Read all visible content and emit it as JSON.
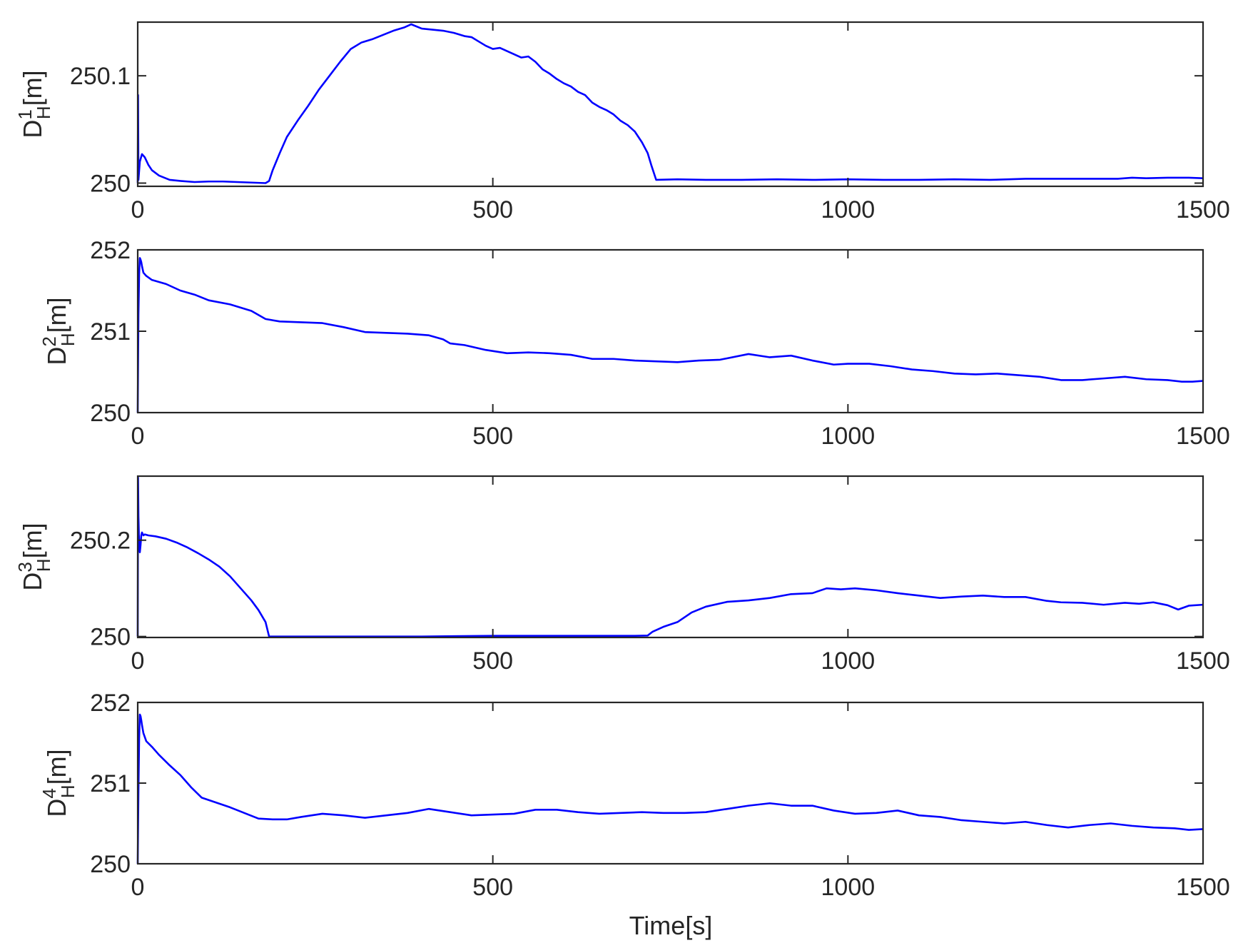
{
  "figure": {
    "xlabel": "Time[s]",
    "line_color": "#0000ff",
    "axes_color": "#262626"
  },
  "chart_data": [
    {
      "type": "line",
      "ylabel": {
        "base": "D",
        "sup": "1",
        "sub": "H",
        "unit": "[m]"
      },
      "xlim": [
        0,
        1500
      ],
      "ylim": [
        249.997,
        250.15
      ],
      "xticks": [
        0,
        500,
        1000,
        1500
      ],
      "yticks": [
        250,
        250.1
      ],
      "ytick_labels": [
        "250",
        "250.1"
      ],
      "grid": false,
      "series": [
        {
          "x": [
            0,
            0.5,
            1,
            3,
            6,
            10,
            15,
            20,
            30,
            45,
            60,
            80,
            100,
            120,
            140,
            160,
            180,
            185,
            190,
            200,
            210,
            225,
            240,
            255,
            270,
            285,
            300,
            315,
            330,
            345,
            360,
            375,
            385,
            400,
            415,
            430,
            445,
            460,
            470,
            480,
            490,
            500,
            510,
            520,
            530,
            540,
            550,
            560,
            570,
            580,
            590,
            600,
            610,
            620,
            630,
            640,
            650,
            660,
            670,
            680,
            690,
            700,
            710,
            718,
            723,
            730,
            760,
            800,
            850,
            900,
            950,
            1000,
            1050,
            1100,
            1150,
            1200,
            1250,
            1300,
            1350,
            1380,
            1400,
            1420,
            1450,
            1480,
            1500
          ],
          "y": [
            250.0,
            250.082,
            250.003,
            250.02,
            250.027,
            250.024,
            250.017,
            250.012,
            250.007,
            250.003,
            250.002,
            250.001,
            250.0015,
            250.0015,
            250.001,
            250.0005,
            250.0,
            250.002,
            250.012,
            250.028,
            250.043,
            250.058,
            250.072,
            250.087,
            250.1,
            250.113,
            250.125,
            250.131,
            250.134,
            250.138,
            250.142,
            250.145,
            250.148,
            250.144,
            250.143,
            250.142,
            250.14,
            250.137,
            250.136,
            250.132,
            250.128,
            250.125,
            250.126,
            250.123,
            250.12,
            250.117,
            250.118,
            250.113,
            250.106,
            250.102,
            250.097,
            250.093,
            250.09,
            250.085,
            250.082,
            250.075,
            250.071,
            250.068,
            250.064,
            250.058,
            250.054,
            250.048,
            250.038,
            250.028,
            250.017,
            250.003,
            250.0035,
            250.003,
            250.003,
            250.0035,
            250.003,
            250.0035,
            250.003,
            250.003,
            250.0035,
            250.003,
            250.004,
            250.004,
            250.004,
            250.004,
            250.005,
            250.0045,
            250.005,
            250.005,
            250.0045
          ]
        }
      ]
    },
    {
      "type": "line",
      "ylabel": {
        "base": "D",
        "sup": "2",
        "sub": "H",
        "unit": "[m]"
      },
      "xlim": [
        0,
        1500
      ],
      "ylim": [
        250,
        252
      ],
      "xticks": [
        0,
        500,
        1000,
        1500
      ],
      "yticks": [
        250,
        251,
        252
      ],
      "ytick_labels": [
        "250",
        "251",
        "252"
      ],
      "grid": false,
      "series": [
        {
          "x": [
            0,
            1,
            2,
            3,
            4,
            5,
            6,
            8,
            12,
            20,
            40,
            60,
            80,
            100,
            130,
            160,
            180,
            200,
            230,
            260,
            290,
            320,
            350,
            380,
            410,
            430,
            440,
            460,
            490,
            520,
            550,
            580,
            610,
            640,
            670,
            700,
            730,
            760,
            790,
            820,
            860,
            890,
            920,
            950,
            980,
            1000,
            1030,
            1060,
            1090,
            1120,
            1150,
            1180,
            1210,
            1240,
            1270,
            1300,
            1330,
            1360,
            1390,
            1420,
            1450,
            1470,
            1485,
            1500
          ],
          "y": [
            250.0,
            251.2,
            251.7,
            251.9,
            251.88,
            251.85,
            251.8,
            251.72,
            251.68,
            251.63,
            251.58,
            251.5,
            251.45,
            251.38,
            251.33,
            251.25,
            251.15,
            251.12,
            251.11,
            251.1,
            251.05,
            250.99,
            250.98,
            250.97,
            250.95,
            250.9,
            250.85,
            250.83,
            250.77,
            250.73,
            250.74,
            250.73,
            250.71,
            250.66,
            250.66,
            250.64,
            250.63,
            250.62,
            250.64,
            250.65,
            250.72,
            250.68,
            250.7,
            250.64,
            250.59,
            250.6,
            250.6,
            250.57,
            250.53,
            250.51,
            250.48,
            250.47,
            250.48,
            250.46,
            250.44,
            250.4,
            250.4,
            250.42,
            250.44,
            250.41,
            250.4,
            250.38,
            250.38,
            250.39
          ]
        }
      ]
    },
    {
      "type": "line",
      "ylabel": {
        "base": "D",
        "sup": "3",
        "sub": "H",
        "unit": "[m]"
      },
      "xlim": [
        0,
        1500
      ],
      "ylim": [
        249.998,
        250.333
      ],
      "xticks": [
        0,
        500,
        1000,
        1500
      ],
      "yticks": [
        250,
        250.2
      ],
      "ytick_labels": [
        "250",
        "250.2"
      ],
      "grid": false,
      "series": [
        {
          "x": [
            0,
            0.5,
            1,
            2,
            3,
            4,
            5,
            6,
            8,
            10,
            15,
            25,
            40,
            55,
            70,
            85,
            100,
            115,
            130,
            145,
            160,
            170,
            180,
            185,
            200,
            300,
            400,
            500,
            600,
            700,
            718,
            725,
            740,
            760,
            780,
            800,
            830,
            860,
            890,
            920,
            950,
            970,
            990,
            1010,
            1040,
            1070,
            1100,
            1130,
            1160,
            1190,
            1220,
            1250,
            1280,
            1300,
            1330,
            1360,
            1390,
            1410,
            1430,
            1450,
            1465,
            1480,
            1500
          ],
          "y": [
            250.0,
            250.33,
            250.25,
            250.19,
            250.175,
            250.19,
            250.21,
            250.216,
            250.21,
            250.212,
            250.21,
            250.208,
            250.203,
            250.195,
            250.185,
            250.173,
            250.16,
            250.145,
            250.125,
            250.1,
            250.075,
            250.055,
            250.03,
            250.0,
            250.0,
            250.0,
            250.0,
            250.0015,
            250.0015,
            250.0015,
            250.002,
            250.01,
            250.02,
            250.03,
            250.05,
            250.062,
            250.072,
            250.075,
            250.08,
            250.088,
            250.09,
            250.1,
            250.098,
            250.1,
            250.096,
            250.09,
            250.085,
            250.08,
            250.083,
            250.085,
            250.082,
            250.082,
            250.074,
            250.071,
            250.07,
            250.066,
            250.07,
            250.068,
            250.071,
            250.065,
            250.056,
            250.064,
            250.066
          ]
        }
      ]
    },
    {
      "type": "line",
      "ylabel": {
        "base": "D",
        "sup": "4",
        "sub": "H",
        "unit": "[m]"
      },
      "xlim": [
        0,
        1500
      ],
      "ylim": [
        250,
        252
      ],
      "xticks": [
        0,
        500,
        1000,
        1500
      ],
      "yticks": [
        250,
        251,
        252
      ],
      "ytick_labels": [
        "250",
        "251",
        "252"
      ],
      "grid": false,
      "series": [
        {
          "x": [
            0,
            1,
            2,
            3,
            4,
            5,
            6,
            8,
            12,
            20,
            30,
            45,
            60,
            75,
            90,
            110,
            130,
            150,
            170,
            190,
            210,
            230,
            260,
            290,
            320,
            350,
            380,
            410,
            440,
            470,
            500,
            530,
            560,
            590,
            620,
            650,
            680,
            710,
            740,
            770,
            800,
            830,
            860,
            890,
            920,
            950,
            980,
            1010,
            1040,
            1070,
            1100,
            1130,
            1160,
            1190,
            1220,
            1250,
            1280,
            1310,
            1340,
            1370,
            1400,
            1430,
            1460,
            1480,
            1500
          ],
          "y": [
            250.0,
            250.9,
            251.55,
            251.85,
            251.83,
            251.78,
            251.72,
            251.62,
            251.52,
            251.45,
            251.35,
            251.22,
            251.1,
            250.95,
            250.82,
            250.76,
            250.7,
            250.63,
            250.56,
            250.55,
            250.55,
            250.58,
            250.62,
            250.6,
            250.57,
            250.6,
            250.63,
            250.68,
            250.64,
            250.6,
            250.61,
            250.62,
            250.67,
            250.67,
            250.64,
            250.62,
            250.63,
            250.64,
            250.63,
            250.63,
            250.64,
            250.68,
            250.72,
            250.75,
            250.72,
            250.72,
            250.66,
            250.62,
            250.63,
            250.66,
            250.6,
            250.58,
            250.54,
            250.52,
            250.5,
            250.52,
            250.48,
            250.45,
            250.48,
            250.5,
            250.47,
            250.45,
            250.44,
            250.42,
            250.43
          ]
        }
      ]
    }
  ]
}
